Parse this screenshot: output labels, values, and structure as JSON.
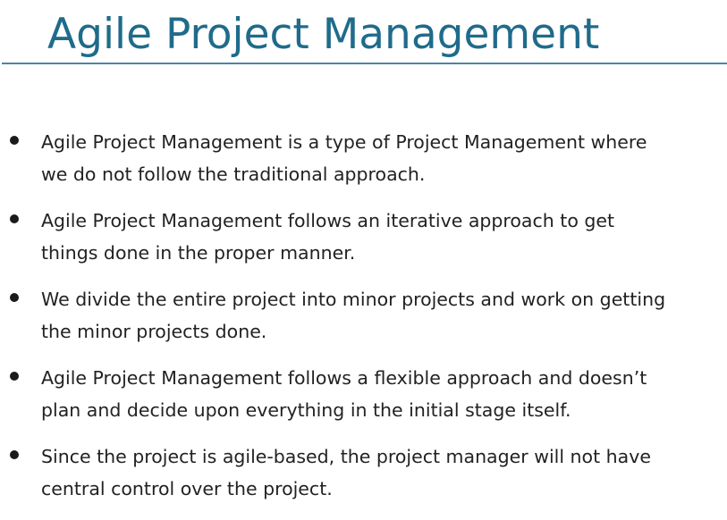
{
  "slide": {
    "title": "Agile Project Management",
    "bullets": [
      {
        "line1": "Agile Project Management is a type of Project Management where",
        "line2": "we do not follow the traditional approach."
      },
      {
        "line1": "Agile Project Management follows an iterative approach to get",
        "line2": "things done in the proper manner."
      },
      {
        "line1": "We divide the entire project into minor projects and work on getting",
        "line2": "the minor projects done."
      },
      {
        "line1": "Agile Project Management follows a flexible approach and doesn’t",
        "line2": "plan and decide upon everything in the initial stage itself."
      },
      {
        "line1": "Since the project is agile-based, the project manager will not have",
        "line2": "central control over the project."
      }
    ]
  },
  "colors": {
    "title": "#1f6b8b",
    "rule": "#4b84a6",
    "text": "#222222",
    "background": "#ffffff"
  }
}
